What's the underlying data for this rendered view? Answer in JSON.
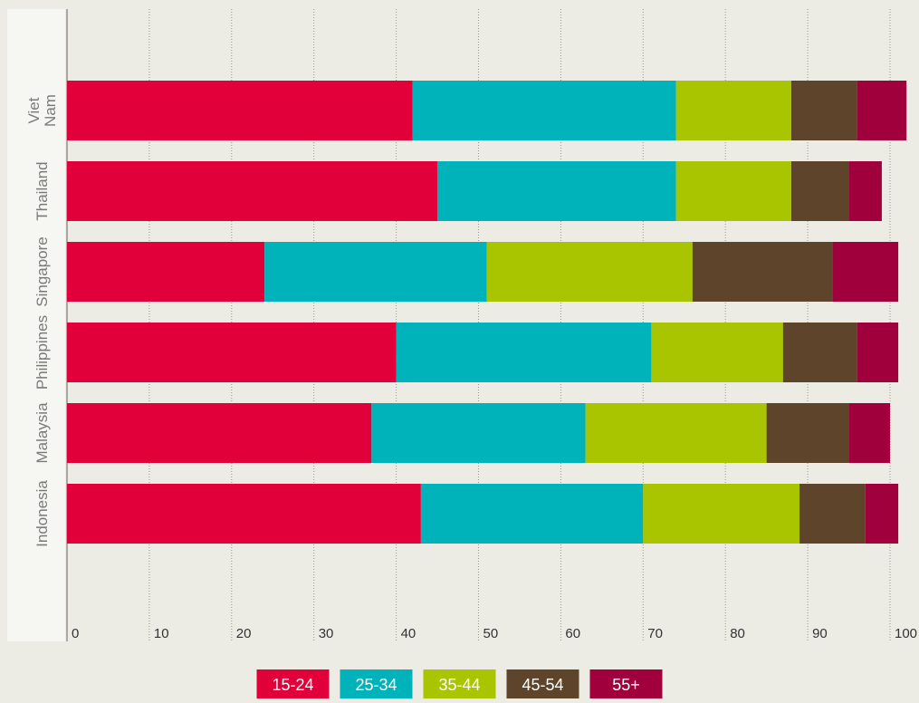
{
  "chart_data": {
    "type": "bar",
    "orientation": "horizontal",
    "stacked": true,
    "title": "",
    "xlabel": "",
    "ylabel": "",
    "xlim": [
      0,
      100
    ],
    "x_ticks": [
      "0",
      "10",
      "20",
      "30",
      "40",
      "50",
      "60",
      "70",
      "80",
      "90",
      "100"
    ],
    "grid": "vertical dotted",
    "legend_position": "bottom-center",
    "categories": [
      "Viet Nam",
      "Thailand",
      "Singapore",
      "Philippines",
      "Malaysia",
      "Indonesia"
    ],
    "series": [
      {
        "name": "15-24",
        "color": "#e2003a",
        "values": [
          42,
          45,
          24,
          40,
          37,
          43
        ]
      },
      {
        "name": "25-34",
        "color": "#00b2b9",
        "values": [
          32,
          29,
          27,
          31,
          26,
          27
        ]
      },
      {
        "name": "35-44",
        "color": "#a8c500",
        "values": [
          14,
          14,
          25,
          16,
          22,
          19
        ]
      },
      {
        "name": "45-54",
        "color": "#5e442a",
        "values": [
          8,
          7,
          17,
          9,
          10,
          8
        ]
      },
      {
        "name": "55+",
        "color": "#a0003c",
        "values": [
          6,
          4,
          8,
          5,
          5,
          4
        ]
      }
    ]
  }
}
